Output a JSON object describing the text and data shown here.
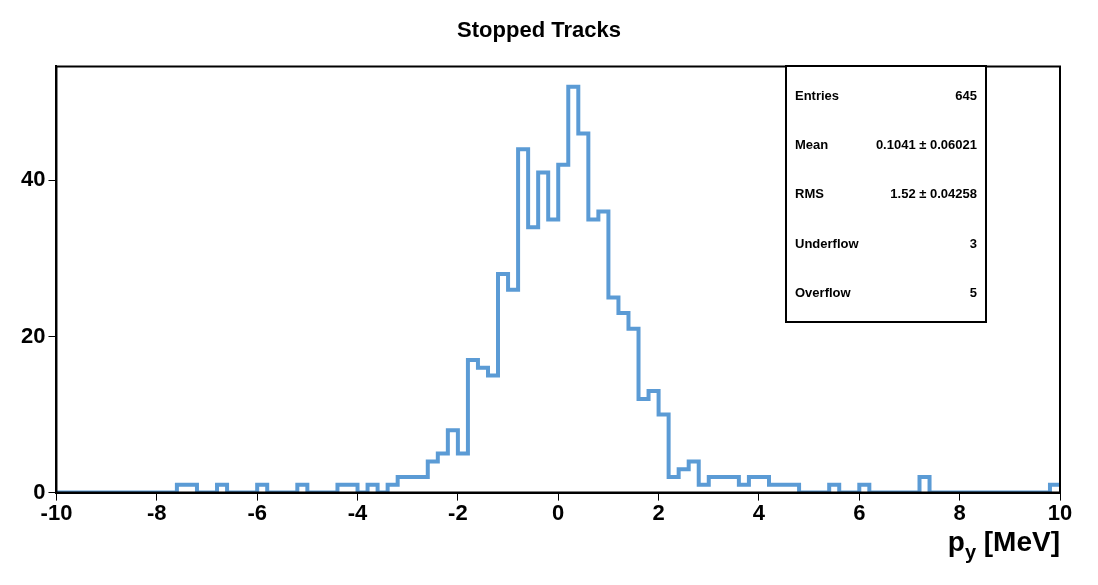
{
  "chart_data": {
    "type": "histogram",
    "title": "Stopped Tracks",
    "xlabel": "p$_{y}$ [MeV]",
    "bins": [
      -10,
      -9.8,
      -9.6,
      -9.4,
      -9.2,
      -9,
      -8.8,
      -8.6,
      -8.4,
      -8.2,
      -8,
      -7.8,
      -7.6,
      -7.4,
      -7.2,
      -7,
      -6.8,
      -6.6,
      -6.4,
      -6.2,
      -6,
      -5.8,
      -5.6,
      -5.4,
      -5.2,
      -5,
      -4.8,
      -4.6,
      -4.4,
      -4.2,
      -4,
      -3.8,
      -3.6,
      -3.4,
      -3.2,
      -3,
      -2.8,
      -2.6,
      -2.4,
      -2.2,
      -2,
      -1.8,
      -1.6,
      -1.4,
      -1.2,
      -1,
      -0.8,
      -0.6,
      -0.4,
      -0.2,
      0,
      0.2,
      0.4,
      0.6,
      0.8,
      1,
      1.2,
      1.4,
      1.6,
      1.8,
      2,
      2.2,
      2.4,
      2.6,
      2.8,
      3,
      3.2,
      3.4,
      3.6,
      3.8,
      4,
      4.2,
      4.4,
      4.6,
      4.8,
      5,
      5.2,
      5.4,
      5.6,
      5.8,
      6,
      6.2,
      6.4,
      6.6,
      6.8,
      7,
      7.2,
      7.4,
      7.6,
      7.8,
      8,
      8.2,
      8.4,
      8.6,
      8.8,
      9,
      9.2,
      9.4,
      9.6,
      9.8,
      10
    ],
    "values": [
      0,
      0,
      0,
      0,
      0,
      0,
      0,
      0,
      0,
      0,
      0,
      0,
      1,
      1,
      0,
      0,
      1,
      0,
      0,
      0,
      1,
      0,
      0,
      0,
      1,
      0,
      0,
      0,
      1,
      1,
      0,
      1,
      0,
      1,
      2,
      2,
      2,
      4,
      5,
      8,
      5,
      17,
      16,
      15,
      28,
      26,
      44,
      34,
      41,
      35,
      42,
      52,
      46,
      35,
      36,
      25,
      23,
      21,
      12,
      13,
      10,
      2,
      3,
      4,
      1,
      2,
      2,
      2,
      1,
      2,
      2,
      1,
      1,
      1,
      0,
      0,
      0,
      1,
      0,
      0,
      1,
      0,
      0,
      0,
      0,
      0,
      2,
      0,
      0,
      0,
      0,
      0,
      0,
      0,
      0,
      0,
      0,
      0,
      0,
      1
    ],
    "color": "#5b9bd5",
    "xlim": [
      -10,
      10
    ],
    "xticks": [
      -10,
      -8,
      -6,
      -4,
      -2,
      0,
      2,
      4,
      6,
      8,
      10
    ],
    "ylim": [
      0,
      54.6
    ],
    "yticks": [
      0,
      20,
      40
    ],
    "grid": false,
    "legend": false,
    "annotations": [
      "Entries",
      "645",
      "Mean",
      "0.1041 ± 0.06021",
      "RMS",
      "1.52 ± 0.04258",
      "Underflow",
      "3",
      "Overflow",
      "5"
    ]
  }
}
